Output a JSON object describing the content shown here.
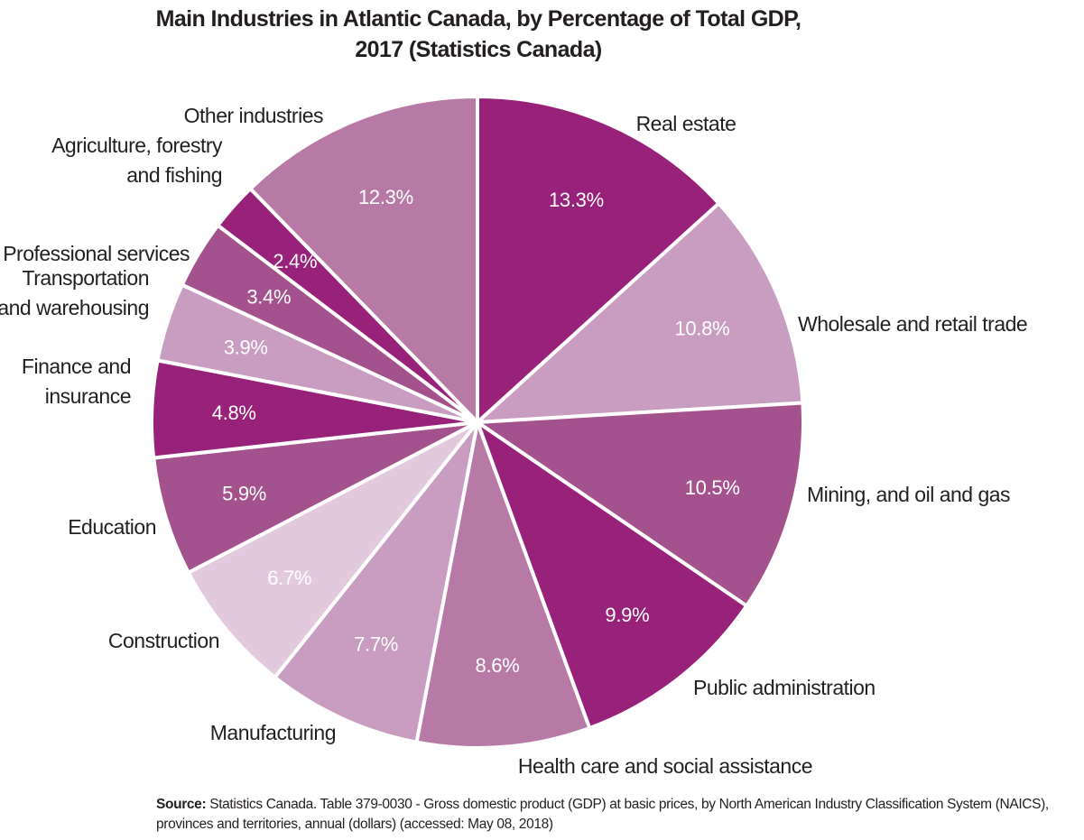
{
  "chart_data": {
    "type": "pie",
    "title": [
      "Main Industries in Atlantic Canada, by Percentage of Total GDP,",
      "2017 (Statistics Canada)"
    ],
    "slices": [
      {
        "label": [
          "Real estate"
        ],
        "value": 13.3,
        "display": "13.3%",
        "color": "#98217a"
      },
      {
        "label": [
          "Wholesale and retail trade"
        ],
        "value": 10.8,
        "display": "10.8%",
        "color": "#c99cc1"
      },
      {
        "label": [
          "Mining, and oil and gas"
        ],
        "value": 10.5,
        "display": "10.5%",
        "color": "#a4528d"
      },
      {
        "label": [
          "Public administration"
        ],
        "value": 9.9,
        "display": "9.9%",
        "color": "#98217a"
      },
      {
        "label": [
          "Health care and social assistance"
        ],
        "value": 8.6,
        "display": "8.6%",
        "color": "#b77aa6"
      },
      {
        "label": [
          "Manufacturing"
        ],
        "value": 7.7,
        "display": "7.7%",
        "color": "#c99cc1"
      },
      {
        "label": [
          "Construction"
        ],
        "value": 6.7,
        "display": "6.7%",
        "color": "#e3c9dd"
      },
      {
        "label": [
          "Education"
        ],
        "value": 5.9,
        "display": "5.9%",
        "color": "#a4528d"
      },
      {
        "label": [
          "Finance and",
          "insurance"
        ],
        "value": 4.8,
        "display": "4.8%",
        "color": "#98217a"
      },
      {
        "label": [
          "Transportation",
          "and warehousing"
        ],
        "value": 3.9,
        "display": "3.9%",
        "color": "#c99cc1"
      },
      {
        "label": [
          "Professional services"
        ],
        "value": 3.4,
        "display": "3.4%",
        "color": "#a4528d"
      },
      {
        "label": [
          "Agriculture, forestry",
          "and fishing"
        ],
        "value": 2.4,
        "display": "2.4%",
        "color": "#98217a"
      },
      {
        "label": [
          "Other industries"
        ],
        "value": 12.3,
        "display": "12.3%",
        "color": "#b77aa6"
      }
    ]
  },
  "source": {
    "prefix": "Source:",
    "text": " Statistics Canada. Table 379-0030 - Gross domestic product (GDP) at basic prices, by North American Industry Classification System (NAICS), provinces and territories, annual (dollars) (accessed: May 08, 2018)"
  }
}
